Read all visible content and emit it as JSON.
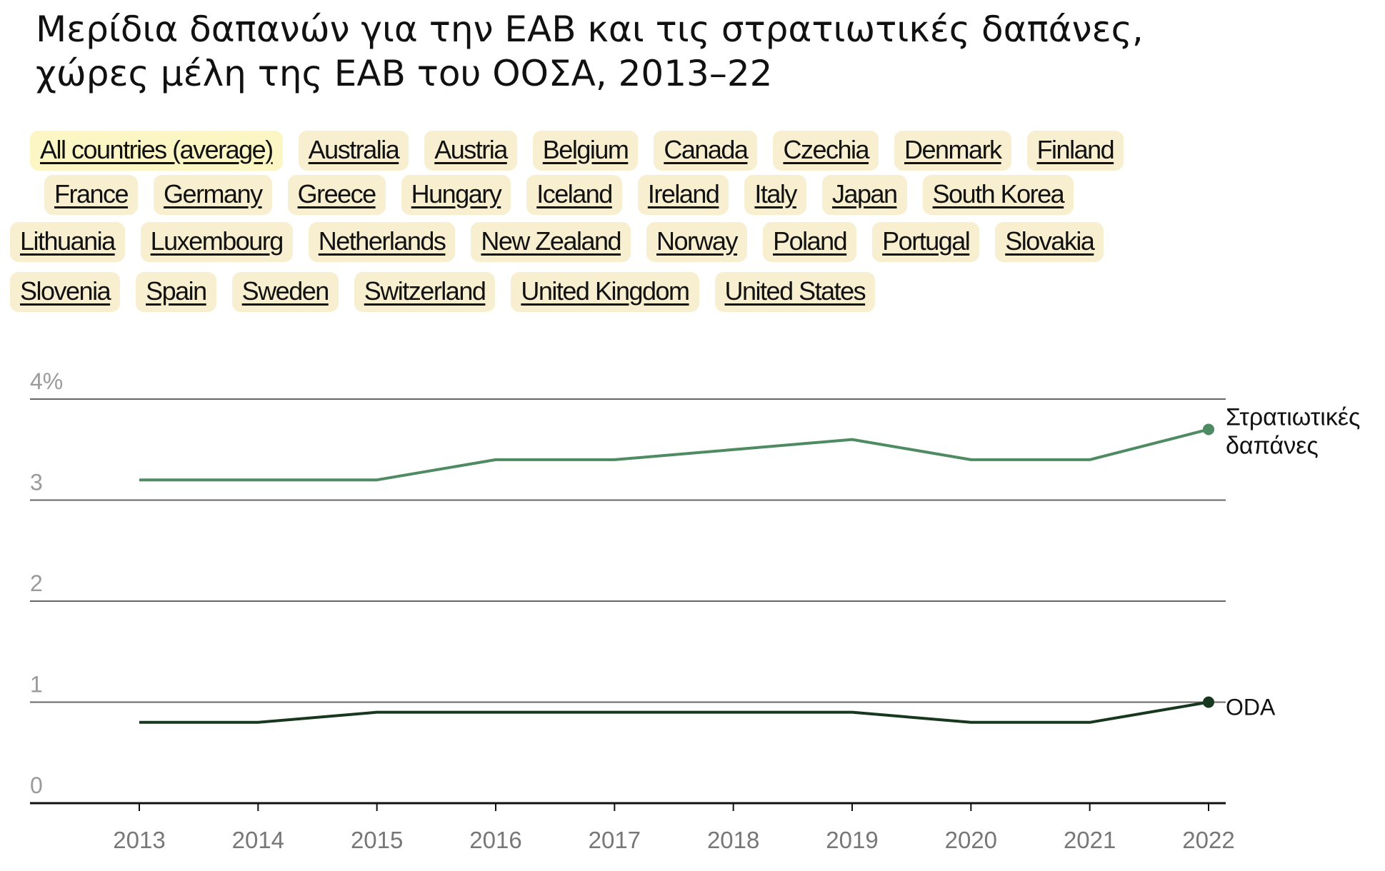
{
  "title_line1": "Μερίδια δαπανών για την ΕΑΒ και τις στρατιωτικές δαπάνες,",
  "title_line2": "χώρες μέλη της ΕΑΒ του ΟΟΣΑ, 2013–22",
  "tabs": {
    "row1": [
      "All countries (average)",
      "Australia",
      "Austria",
      "Belgium",
      "Canada",
      "Czechia",
      "Denmark",
      "Finland"
    ],
    "row2": [
      "France",
      "Germany",
      "Greece",
      "Hungary",
      "Iceland",
      "Ireland",
      "Italy",
      "Japan",
      "South Korea"
    ],
    "row3": [
      "Lithuania",
      "Luxembourg",
      "Netherlands",
      "New Zealand",
      "Norway",
      "Poland",
      "Portugal",
      "Slovakia"
    ],
    "row4": [
      "Slovenia",
      "Spain",
      "Sweden",
      "Switzerland",
      "United Kingdom",
      "United States"
    ]
  },
  "selected_tab": "All countries (average)",
  "colors": {
    "military": "#4e8a62",
    "oda": "#17381f",
    "tab_bg": "#f7efcf",
    "grid": "#555555"
  },
  "chart_data": {
    "type": "line",
    "x": [
      2013,
      2014,
      2015,
      2016,
      2017,
      2018,
      2019,
      2020,
      2021,
      2022
    ],
    "series": [
      {
        "name": "Στρατιωτικές δαπάνες",
        "label_lines": [
          "Στρατιωτικές",
          "δαπάνες"
        ],
        "values": [
          3.2,
          3.2,
          3.2,
          3.4,
          3.4,
          3.5,
          3.6,
          3.4,
          3.4,
          3.7
        ]
      },
      {
        "name": "ODA",
        "label_lines": [
          "ODA"
        ],
        "values": [
          0.8,
          0.8,
          0.9,
          0.9,
          0.9,
          0.9,
          0.9,
          0.8,
          0.8,
          1.0
        ]
      }
    ],
    "yticks": [
      0,
      1,
      2,
      3,
      4
    ],
    "ytick_labels": [
      "0",
      "1",
      "2",
      "3",
      "4%"
    ],
    "ylim": [
      0,
      4
    ],
    "grid": true
  }
}
